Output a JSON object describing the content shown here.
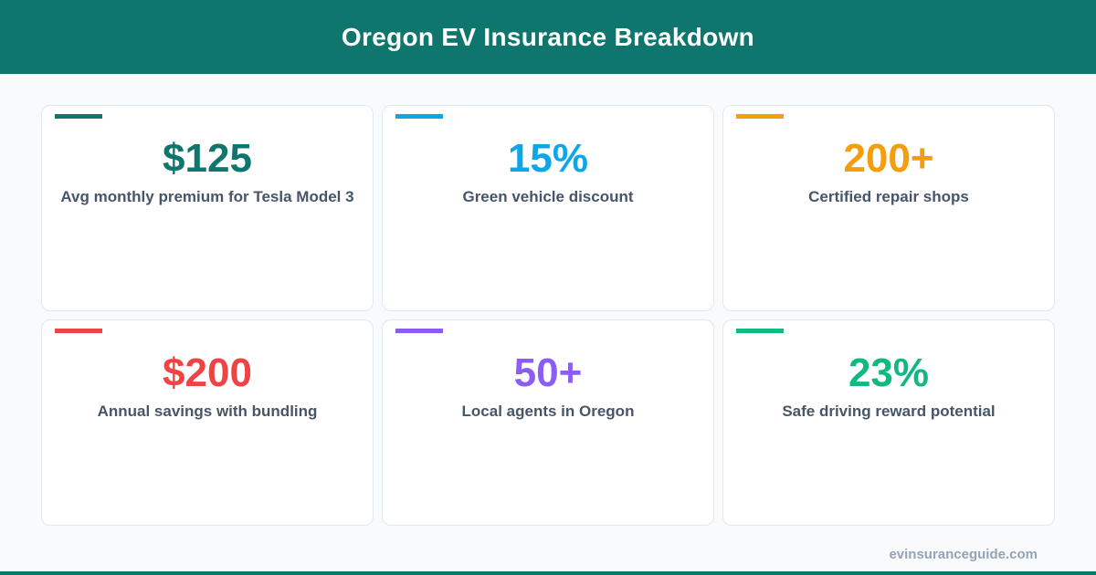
{
  "header": {
    "title": "Oregon EV Insurance Breakdown"
  },
  "colors": {
    "brand": "#0f766e",
    "card1": "#0f766e",
    "card2": "#0ea5e9",
    "card3": "#f59e0b",
    "card4": "#ef4444",
    "card5": "#8b5cf6",
    "card6": "#10b981"
  },
  "cards": [
    {
      "value": "$125",
      "label": "Avg monthly premium for Tesla Model 3"
    },
    {
      "value": "15%",
      "label": "Green vehicle discount"
    },
    {
      "value": "200+",
      "label": "Certified repair shops"
    },
    {
      "value": "$200",
      "label": "Annual savings with bundling"
    },
    {
      "value": "50+",
      "label": "Local agents in Oregon"
    },
    {
      "value": "23%",
      "label": "Safe driving reward potential"
    }
  ],
  "footer": {
    "site": "evinsuranceguide.com"
  }
}
